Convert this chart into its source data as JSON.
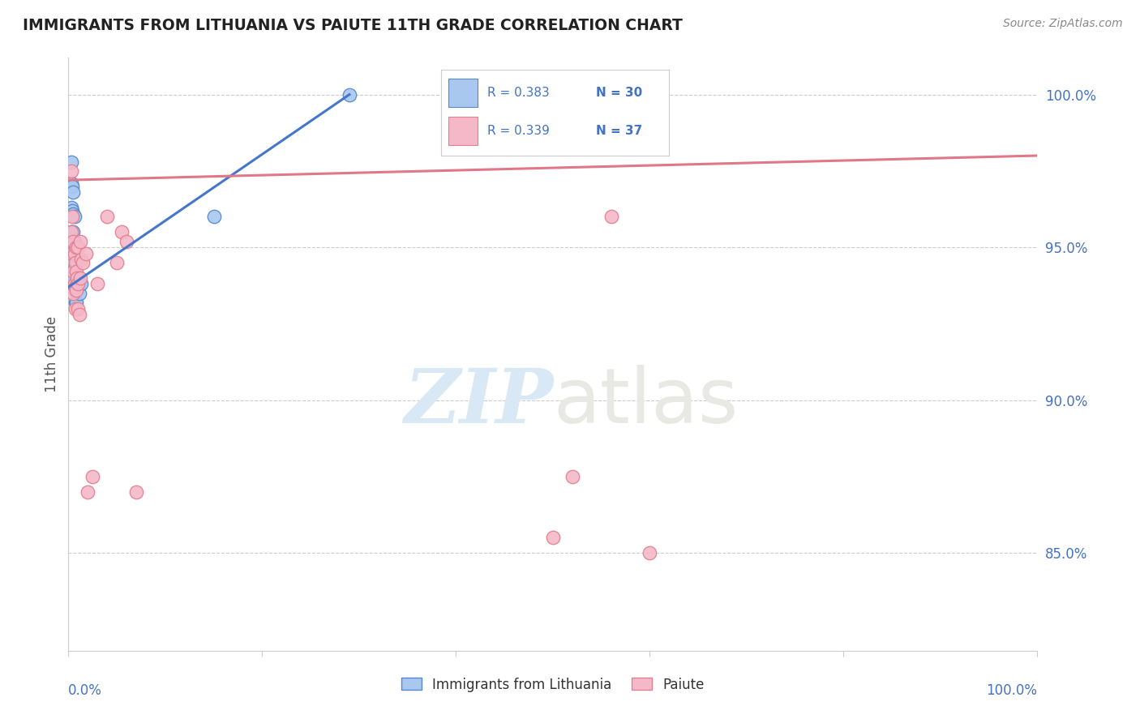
{
  "title": "IMMIGRANTS FROM LITHUANIA VS PAIUTE 11TH GRADE CORRELATION CHART",
  "source": "Source: ZipAtlas.com",
  "ylabel": "11th Grade",
  "y_tick_labels": [
    "85.0%",
    "90.0%",
    "95.0%",
    "100.0%"
  ],
  "y_tick_values": [
    0.85,
    0.9,
    0.95,
    1.0
  ],
  "x_range": [
    0.0,
    1.0
  ],
  "y_range": [
    0.818,
    1.012
  ],
  "legend_blue_r": "R = 0.383",
  "legend_blue_n": "N = 30",
  "legend_pink_r": "R = 0.339",
  "legend_pink_n": "N = 37",
  "legend_label_blue": "Immigrants from Lithuania",
  "legend_label_pink": "Paiute",
  "blue_color": "#A8C8F0",
  "pink_color": "#F5B8C8",
  "blue_edge_color": "#5588CC",
  "pink_edge_color": "#E08090",
  "blue_line_color": "#4477CC",
  "pink_line_color": "#E07888",
  "watermark_color": "#E0E8F0",
  "grid_color": "#CCCCCC",
  "background_color": "#FFFFFF",
  "legend_r_color": "#4472C4",
  "legend_n_color": "#4472C4",
  "title_color": "#222222",
  "source_color": "#888888",
  "ylabel_color": "#555555",
  "blue_scatter_x": [
    0.003,
    0.003,
    0.003,
    0.003,
    0.004,
    0.004,
    0.004,
    0.005,
    0.005,
    0.005,
    0.005,
    0.005,
    0.006,
    0.006,
    0.006,
    0.006,
    0.006,
    0.007,
    0.007,
    0.007,
    0.007,
    0.008,
    0.008,
    0.008,
    0.009,
    0.01,
    0.011,
    0.013,
    0.15,
    0.29
  ],
  "blue_scatter_y": [
    0.978,
    0.971,
    0.963,
    0.955,
    0.97,
    0.962,
    0.953,
    0.968,
    0.961,
    0.955,
    0.948,
    0.94,
    0.96,
    0.952,
    0.948,
    0.942,
    0.936,
    0.95,
    0.944,
    0.938,
    0.932,
    0.945,
    0.938,
    0.932,
    0.938,
    0.94,
    0.935,
    0.938,
    0.96,
    1.0
  ],
  "pink_scatter_x": [
    0.003,
    0.003,
    0.004,
    0.004,
    0.005,
    0.005,
    0.005,
    0.006,
    0.006,
    0.007,
    0.007,
    0.007,
    0.008,
    0.008,
    0.008,
    0.009,
    0.01,
    0.01,
    0.01,
    0.011,
    0.012,
    0.012,
    0.013,
    0.015,
    0.018,
    0.02,
    0.025,
    0.03,
    0.04,
    0.05,
    0.055,
    0.06,
    0.07,
    0.5,
    0.52,
    0.56,
    0.6
  ],
  "pink_scatter_y": [
    0.975,
    0.955,
    0.96,
    0.948,
    0.952,
    0.942,
    0.935,
    0.948,
    0.938,
    0.945,
    0.937,
    0.93,
    0.95,
    0.942,
    0.936,
    0.94,
    0.95,
    0.938,
    0.93,
    0.928,
    0.952,
    0.94,
    0.946,
    0.945,
    0.948,
    0.87,
    0.875,
    0.938,
    0.96,
    0.945,
    0.955,
    0.952,
    0.87,
    0.855,
    0.875,
    0.96,
    0.85
  ],
  "blue_trend_x": [
    0.0,
    0.29
  ],
  "blue_trend_y": [
    0.937,
    1.0
  ],
  "pink_trend_x": [
    0.0,
    1.0
  ],
  "pink_trend_y": [
    0.972,
    0.98
  ],
  "x_tick_positions": [
    0.0,
    0.2,
    0.4,
    0.6,
    0.8,
    1.0
  ]
}
